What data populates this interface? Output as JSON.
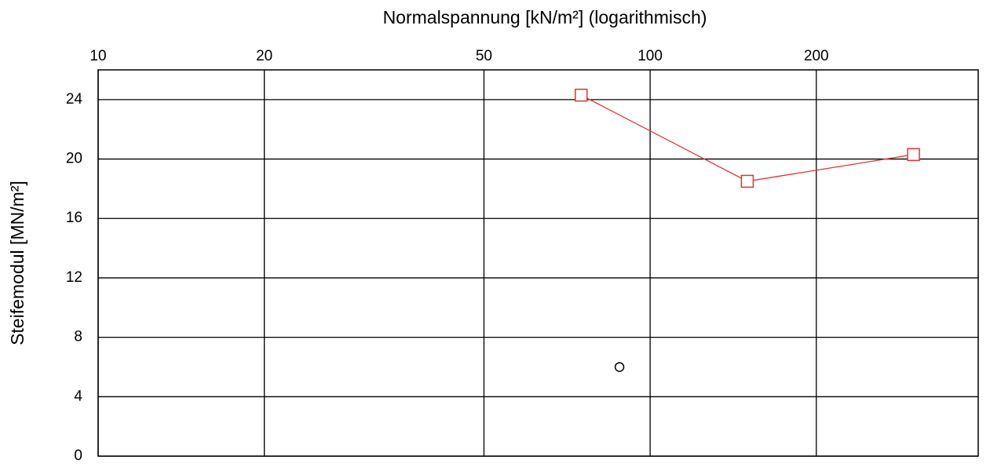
{
  "chart_data": {
    "type": "line",
    "xlabel": "Normalspannung [kN/m²]  (logarithmisch)",
    "ylabel": "Steifemodul [MN/m²]",
    "xscale": "log",
    "xaxis_position": "top",
    "xlim": [
      10,
      393
    ],
    "ylim": [
      0,
      26
    ],
    "xticks": [
      10,
      20,
      50,
      100,
      200
    ],
    "yticks": [
      0,
      4,
      8,
      12,
      16,
      20,
      24
    ],
    "grid": true,
    "series": [
      {
        "color": "#e8302c",
        "marker": "square",
        "line": true,
        "x": [
          75,
          150,
          300
        ],
        "values": [
          24.3,
          18.5,
          20.3
        ]
      },
      {
        "color": "#000000",
        "marker": "circle",
        "line": false,
        "x": [
          88
        ],
        "values": [
          6
        ]
      }
    ]
  }
}
